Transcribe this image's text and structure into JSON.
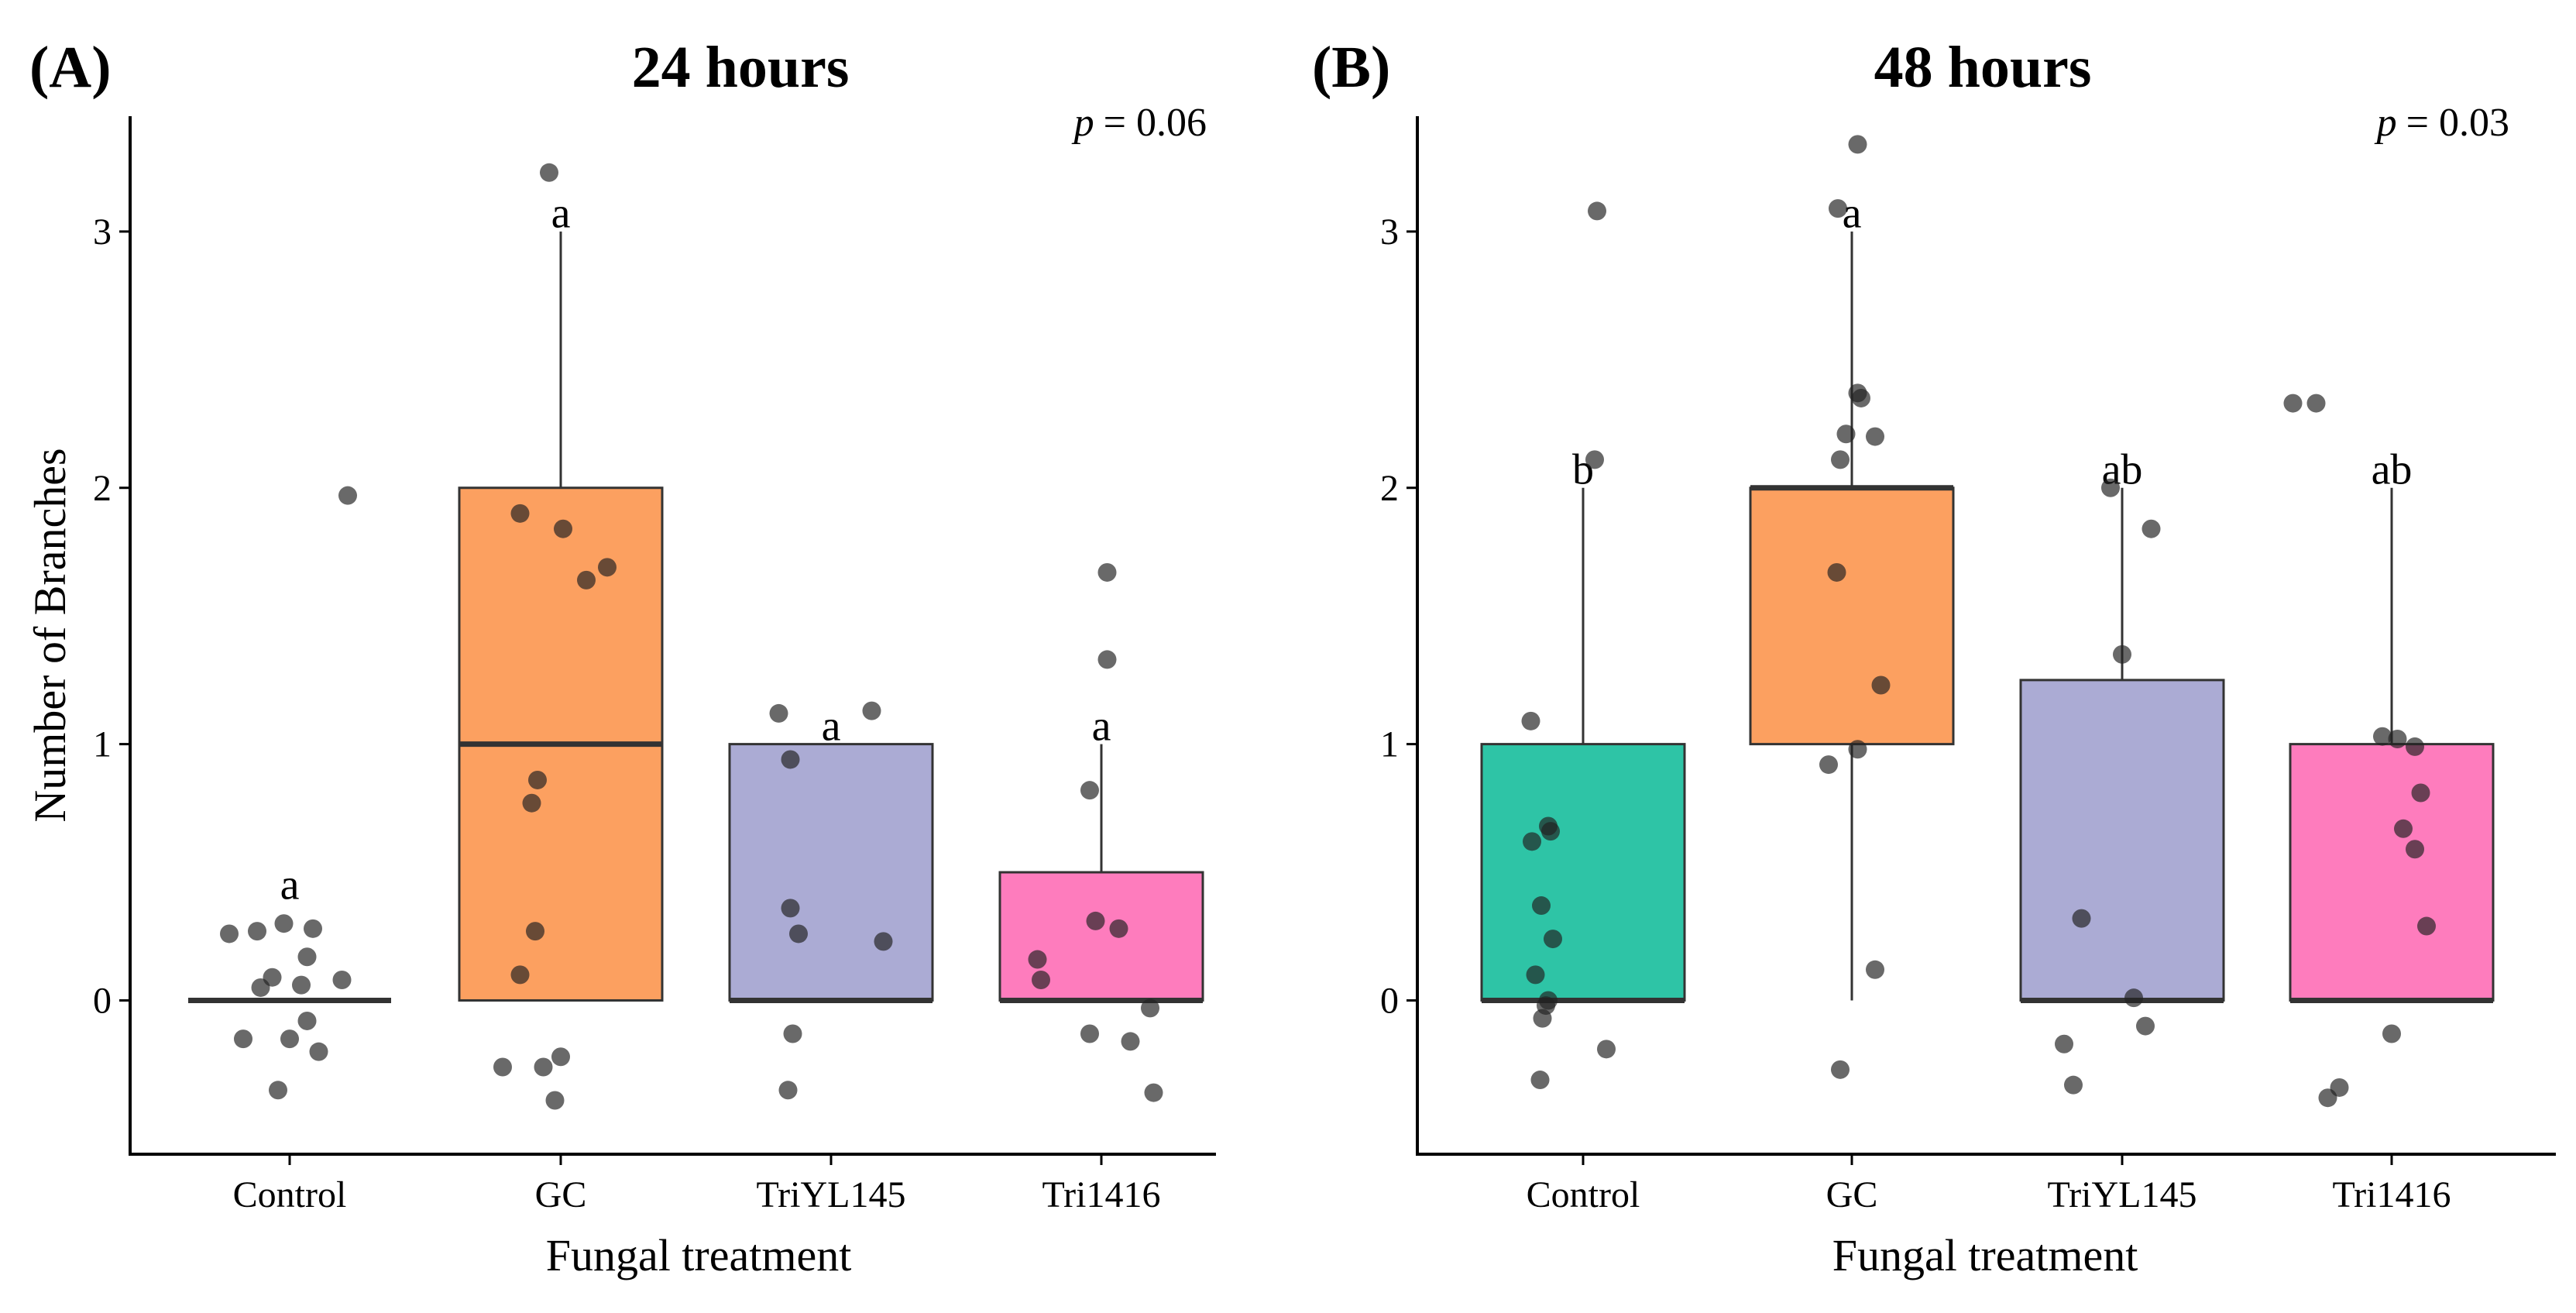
{
  "chart_data": [
    {
      "type": "box",
      "panel_label": "(A)",
      "title": "24 hours",
      "p_label": "p",
      "p_value": "= 0.06",
      "xlabel": "Fungal treatment",
      "ylabel": "Number of Branches",
      "ylim": [
        -0.6,
        3.45
      ],
      "yticks": [
        0,
        1,
        2,
        3
      ],
      "categories": [
        "Control",
        "GC",
        "TriYL145",
        "Tri1416"
      ],
      "boxes": [
        {
          "name": "Control",
          "q1": 0,
          "median": 0,
          "q3": 0,
          "whisker_low": 0,
          "whisker_high": 0,
          "color": "#2ec4a6",
          "letter": "a",
          "letter_y": 0.45,
          "points": [
            [
              -0.28,
              0.27
            ],
            [
              -0.05,
              0.3
            ],
            [
              0.2,
              0.28
            ],
            [
              0.15,
              0.17
            ],
            [
              -0.25,
              0.05
            ],
            [
              0.45,
              0.08
            ],
            [
              0.1,
              0.06
            ],
            [
              -0.15,
              0.09
            ],
            [
              -0.52,
              0.26
            ],
            [
              -0.4,
              -0.15
            ],
            [
              0.0,
              -0.15
            ],
            [
              0.25,
              -0.2
            ],
            [
              0.15,
              -0.08
            ],
            [
              -0.1,
              -0.35
            ],
            [
              0.5,
              1.97
            ]
          ]
        },
        {
          "name": "GC",
          "q1": 0,
          "median": 1,
          "q3": 2,
          "whisker_low": 0,
          "whisker_high": 3,
          "color": "#fca060",
          "letter": "a",
          "letter_y": 3.07,
          "points": [
            [
              -0.1,
              3.23
            ],
            [
              -0.35,
              1.9
            ],
            [
              0.02,
              1.84
            ],
            [
              0.22,
              1.64
            ],
            [
              0.4,
              1.69
            ],
            [
              -0.2,
              0.86
            ],
            [
              -0.25,
              0.77
            ],
            [
              -0.22,
              0.27
            ],
            [
              -0.35,
              0.1
            ],
            [
              -0.5,
              -0.26
            ],
            [
              -0.15,
              -0.26
            ],
            [
              0.0,
              -0.22
            ],
            [
              -0.05,
              -0.39
            ]
          ]
        },
        {
          "name": "TriYL145",
          "q1": 0,
          "median": 0,
          "q3": 1,
          "whisker_low": 0,
          "whisker_high": 1,
          "color": "#ababd4",
          "letter": "a",
          "letter_y": 1.07,
          "points": [
            [
              -0.45,
              1.12
            ],
            [
              -0.35,
              0.94
            ],
            [
              0.35,
              1.13
            ],
            [
              -0.35,
              0.36
            ],
            [
              -0.28,
              0.26
            ],
            [
              0.45,
              0.23
            ],
            [
              -0.33,
              -0.13
            ],
            [
              -0.37,
              -0.35
            ]
          ]
        },
        {
          "name": "Tri1416",
          "q1": 0,
          "median": 0,
          "q3": 0.5,
          "whisker_low": 0,
          "whisker_high": 1,
          "color": "#fe7cbd",
          "letter": "a",
          "letter_y": 1.07,
          "points": [
            [
              0.05,
              1.67
            ],
            [
              0.05,
              1.33
            ],
            [
              -0.1,
              0.82
            ],
            [
              -0.55,
              0.16
            ],
            [
              -0.52,
              0.08
            ],
            [
              -0.05,
              0.31
            ],
            [
              0.15,
              0.28
            ],
            [
              -0.1,
              -0.13
            ],
            [
              0.25,
              -0.16
            ],
            [
              0.42,
              -0.03
            ],
            [
              0.45,
              -0.36
            ]
          ]
        }
      ]
    },
    {
      "type": "box",
      "panel_label": "(B)",
      "title": "48 hours",
      "p_label": "p",
      "p_value": "= 0.03",
      "xlabel": "Fungal treatment",
      "ylabel": "",
      "ylim": [
        -0.6,
        3.45
      ],
      "yticks": [
        0,
        1,
        2,
        3
      ],
      "categories": [
        "Control",
        "GC",
        "TriYL145",
        "Tri1416"
      ],
      "boxes": [
        {
          "name": "Control",
          "q1": 0,
          "median": 0,
          "q3": 1,
          "whisker_low": 0,
          "whisker_high": 2,
          "color": "#2ec4a6",
          "letter": "b",
          "letter_y": 2.07,
          "points": [
            [
              0.12,
              3.08
            ],
            [
              -0.45,
              1.09
            ],
            [
              0.1,
              2.11
            ],
            [
              -0.3,
              0.68
            ],
            [
              -0.28,
              0.66
            ],
            [
              -0.44,
              0.62
            ],
            [
              -0.36,
              0.37
            ],
            [
              -0.26,
              0.24
            ],
            [
              -0.41,
              0.1
            ],
            [
              -0.3,
              0.0
            ],
            [
              -0.32,
              -0.02
            ],
            [
              -0.35,
              -0.07
            ],
            [
              -0.37,
              -0.31
            ],
            [
              0.2,
              -0.19
            ]
          ]
        },
        {
          "name": "GC",
          "q1": 1,
          "median": 2,
          "q3": 2,
          "whisker_low": 0,
          "whisker_high": 3,
          "color": "#fca060",
          "letter": "a",
          "letter_y": 3.07,
          "points": [
            [
              0.05,
              3.34
            ],
            [
              -0.12,
              3.09
            ],
            [
              0.05,
              2.37
            ],
            [
              0.08,
              2.35
            ],
            [
              -0.05,
              2.21
            ],
            [
              0.2,
              2.2
            ],
            [
              -0.1,
              2.11
            ],
            [
              -0.13,
              1.67
            ],
            [
              0.25,
              1.23
            ],
            [
              -0.2,
              0.92
            ],
            [
              0.05,
              0.98
            ],
            [
              0.2,
              0.12
            ],
            [
              -0.1,
              -0.27
            ]
          ]
        },
        {
          "name": "TriYL145",
          "q1": 0,
          "median": 0,
          "q3": 1.25,
          "whisker_low": 0,
          "whisker_high": 2,
          "color": "#ababd4",
          "letter": "ab",
          "letter_y": 2.07,
          "points": [
            [
              -0.1,
              2.0
            ],
            [
              0.25,
              1.84
            ],
            [
              0.0,
              1.35
            ],
            [
              -0.35,
              0.32
            ],
            [
              0.1,
              0.01
            ],
            [
              -0.5,
              -0.17
            ],
            [
              -0.42,
              -0.33
            ],
            [
              0.2,
              -0.1
            ]
          ]
        },
        {
          "name": "Tri1416",
          "q1": 0,
          "median": 0,
          "q3": 1,
          "whisker_low": 0,
          "whisker_high": 2,
          "color": "#fe7cbd",
          "letter": "ab",
          "letter_y": 2.07,
          "points": [
            [
              -0.65,
              2.33
            ],
            [
              -0.08,
              1.03
            ],
            [
              0.05,
              1.02
            ],
            [
              0.2,
              0.99
            ],
            [
              0.25,
              0.81
            ],
            [
              0.1,
              0.67
            ],
            [
              0.2,
              0.59
            ],
            [
              0.3,
              0.29
            ],
            [
              0.0,
              -0.13
            ],
            [
              -0.45,
              -0.34
            ],
            [
              -0.55,
              -0.38
            ],
            [
              -0.85,
              2.33
            ]
          ]
        }
      ]
    }
  ]
}
